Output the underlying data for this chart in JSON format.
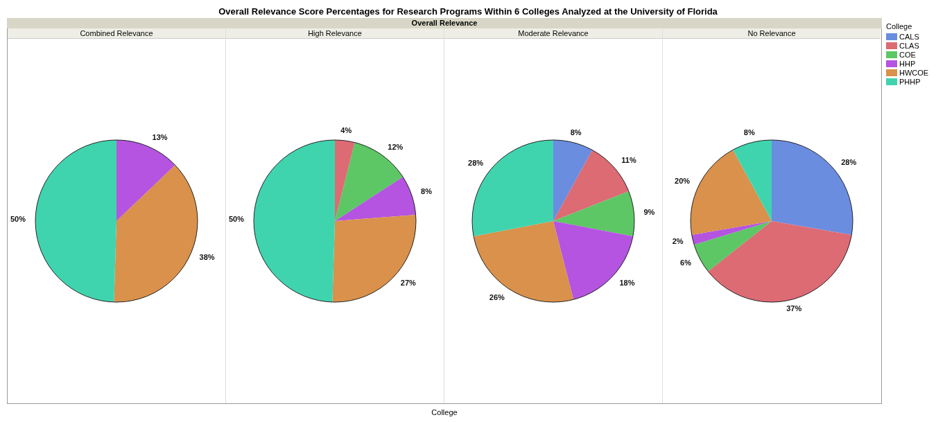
{
  "chart_data": {
    "type": "pie",
    "title": "Overall Relevance Score Percentages for Research Programs Within 6 Colleges Analyzed at the University of Florida",
    "subtitle": "Overall Relevance",
    "xlabel": "College",
    "legend": "right",
    "legend_title": "College",
    "categories": [
      "CALS",
      "CLAS",
      "COE",
      "HHP",
      "HWCOE",
      "PHHP"
    ],
    "colors": [
      "#6a8de0",
      "#dc6b74",
      "#5cc764",
      "#b454e0",
      "#d9914b",
      "#40d4ae"
    ],
    "series": [
      {
        "name": "Combined Relevance",
        "values": [
          null,
          null,
          null,
          13,
          38,
          50
        ],
        "value_labels": [
          null,
          null,
          null,
          "13%",
          "38%",
          "50%"
        ]
      },
      {
        "name": "High Relevance",
        "values": [
          null,
          4,
          12,
          8,
          27,
          50
        ],
        "value_labels": [
          null,
          "4%",
          "12%",
          "8%",
          "27%",
          "50%"
        ]
      },
      {
        "name": "Moderate Relevance",
        "values": [
          8,
          11,
          9,
          18,
          26,
          28
        ],
        "value_labels": [
          "8%",
          "11%",
          "9%",
          "18%",
          "26%",
          "28%"
        ]
      },
      {
        "name": "No Relevance",
        "values": [
          28,
          37,
          6,
          2,
          20,
          8
        ],
        "value_labels": [
          "28%",
          "37%",
          "6%",
          "2%",
          "20%",
          "8%"
        ]
      }
    ]
  }
}
